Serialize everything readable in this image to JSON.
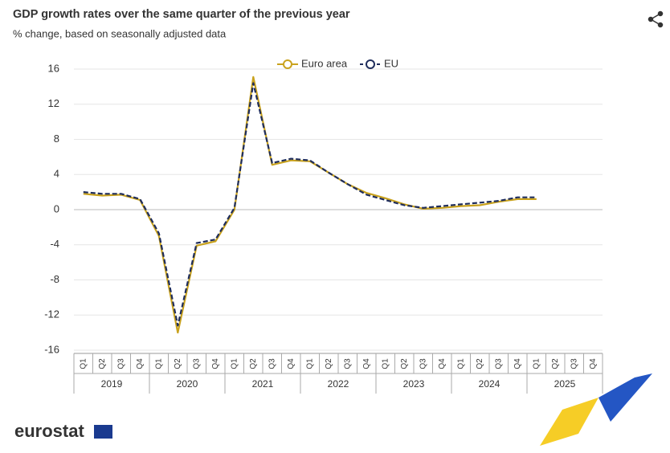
{
  "chart_data": {
    "type": "line",
    "title": "GDP growth rates over the same quarter of the previous year",
    "subtitle": "% change, based on seasonally adjusted data",
    "categories": [
      "Q1",
      "Q2",
      "Q3",
      "Q4",
      "Q1",
      "Q2",
      "Q3",
      "Q4",
      "Q1",
      "Q2",
      "Q3",
      "Q4",
      "Q1",
      "Q2",
      "Q3",
      "Q4",
      "Q1",
      "Q2",
      "Q3",
      "Q4",
      "Q1",
      "Q2",
      "Q3",
      "Q4",
      "Q1",
      "Q2",
      "Q3",
      "Q4"
    ],
    "years": [
      "2019",
      "2020",
      "2021",
      "2022",
      "2023",
      "2024",
      "2025"
    ],
    "series": [
      {
        "name": "Euro area",
        "color": "#c9a21d",
        "dash": false,
        "values": [
          1.8,
          1.6,
          1.7,
          1.1,
          -3.0,
          -14.0,
          -4.1,
          -3.6,
          0.0,
          15.1,
          5.1,
          5.6,
          5.5,
          4.2,
          2.9,
          1.9,
          1.3,
          0.6,
          0.1,
          0.2,
          0.4,
          0.5,
          0.9,
          1.2,
          1.2,
          null,
          null,
          null
        ]
      },
      {
        "name": "EU",
        "color": "#1f2d5c",
        "dash": true,
        "values": [
          2.0,
          1.8,
          1.8,
          1.2,
          -2.7,
          -13.2,
          -3.8,
          -3.4,
          0.2,
          14.4,
          5.3,
          5.8,
          5.6,
          4.2,
          2.9,
          1.7,
          1.1,
          0.5,
          0.2,
          0.4,
          0.6,
          0.8,
          1.0,
          1.4,
          1.4,
          null,
          null,
          null
        ]
      }
    ],
    "ylim": [
      -16,
      16
    ],
    "yticks": [
      16,
      12,
      8,
      4,
      0,
      -4,
      -8,
      -12,
      -16
    ],
    "grid": true,
    "legend": "top",
    "logo": "eurostat"
  }
}
